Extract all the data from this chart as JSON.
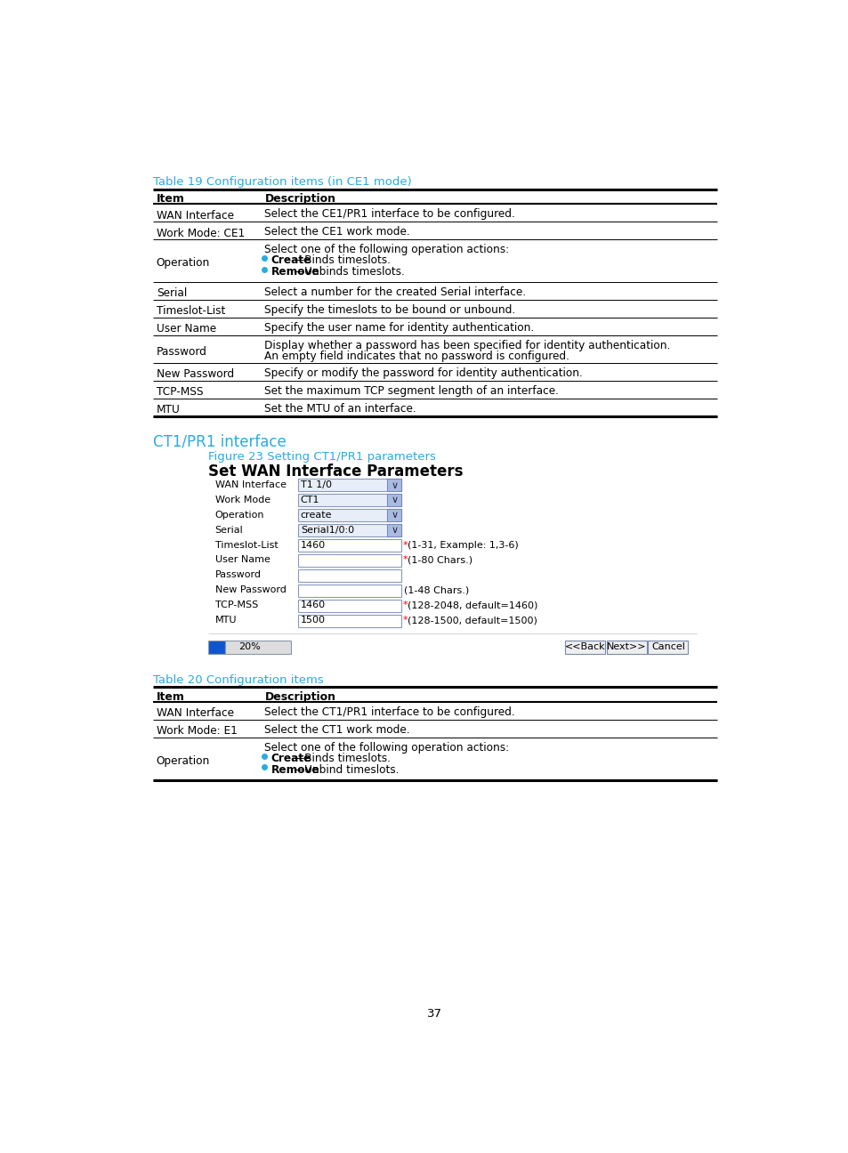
{
  "bg_color": "#ffffff",
  "cyan_color": "#29abe2",
  "text_color": "#000000",
  "page_number": "37",
  "table19_title": "Table 19 Configuration items (in CE1 mode)",
  "table20_title": "Table 20 Configuration items",
  "section_title": "CT1/PR1 interface",
  "figure_title": "Figure 23 Setting CT1/PR1 parameters",
  "form_title": "Set WAN Interface Parameters",
  "progress_pct": "20%"
}
